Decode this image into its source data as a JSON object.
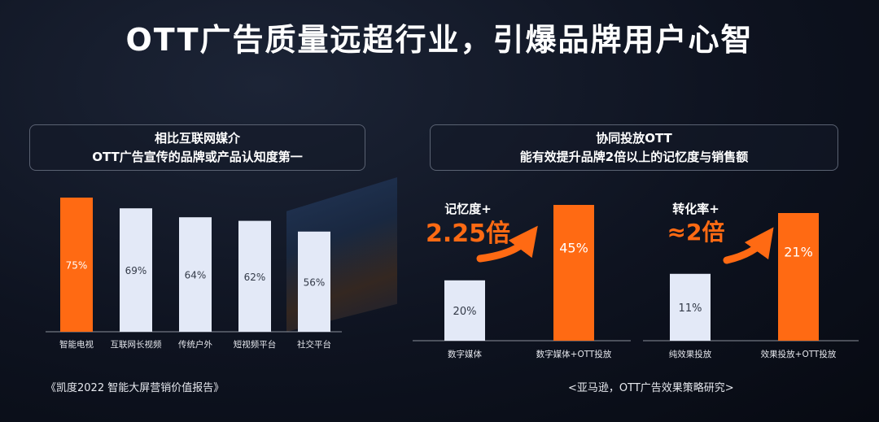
{
  "title": "OTT广告质量远超行业，引爆品牌用户心智",
  "left_panel": {
    "header_line1": "相比互联网媒介",
    "header_line2": "OTT广告宣传的品牌或产品认知度第一",
    "source": "《凯度2022 智能大屏营销价值报告》"
  },
  "right_panel": {
    "header_line1": "协同投放OTT",
    "header_line2": "能有效提升品牌2倍以上的记忆度与销售额",
    "source": "<亚马逊，OTT广告效果策略研究>"
  },
  "colors": {
    "orange": "#ff6a13",
    "light": "#e3e9f7",
    "axis": "#8a8f9a"
  },
  "chart_data": [
    {
      "type": "bar",
      "categories": [
        "智能电视",
        "互联网长视频",
        "传统户外",
        "短视频平台",
        "社交平台"
      ],
      "values": [
        75,
        69,
        64,
        62,
        56
      ],
      "labels": [
        "75%",
        "69%",
        "64%",
        "62%",
        "56%"
      ],
      "highlight": [
        true,
        false,
        false,
        false,
        false
      ]
    },
    {
      "type": "bar",
      "annotation_line1": "记忆度+",
      "annotation_line2": "2.25倍",
      "categories": [
        "数字媒体",
        "数字媒体+OTT投放"
      ],
      "values": [
        20,
        45
      ],
      "labels": [
        "20%",
        "45%"
      ],
      "highlight": [
        false,
        true
      ]
    },
    {
      "type": "bar",
      "annotation_line1": "转化率+",
      "annotation_line2": "≈2倍",
      "categories": [
        "纯效果投放",
        "效果投放+OTT投放"
      ],
      "values": [
        11,
        21
      ],
      "labels": [
        "11%",
        "21%"
      ],
      "highlight": [
        false,
        true
      ]
    }
  ]
}
